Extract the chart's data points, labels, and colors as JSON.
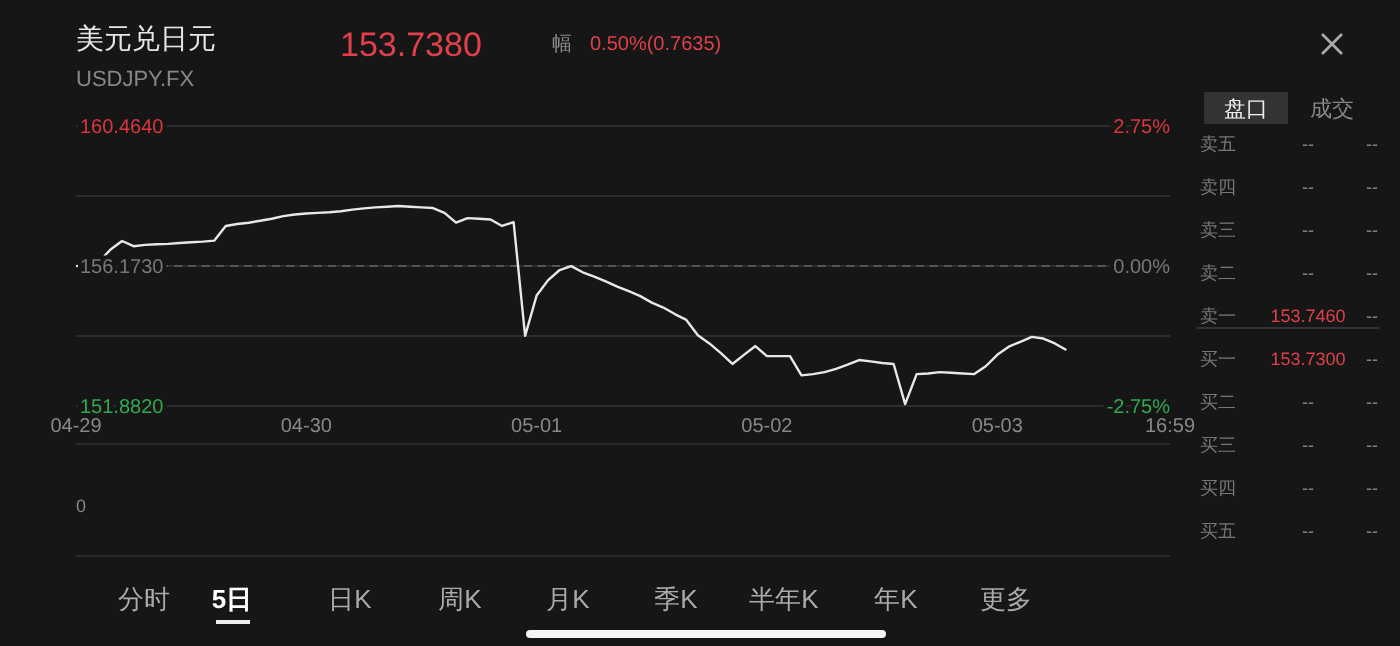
{
  "chart_data": {
    "type": "line",
    "title": "美元兑日元",
    "subtitle": "USDJPY.FX",
    "categories": [
      "04-29",
      null,
      null,
      null,
      null,
      null,
      null,
      null,
      null,
      null,
      null,
      null,
      null,
      null,
      null,
      null,
      null,
      null,
      null,
      null,
      "04-30",
      null,
      null,
      null,
      null,
      null,
      null,
      null,
      null,
      null,
      null,
      null,
      null,
      null,
      null,
      null,
      null,
      null,
      null,
      null,
      "05-01",
      null,
      null,
      null,
      null,
      null,
      null,
      null,
      null,
      null,
      null,
      null,
      null,
      null,
      null,
      null,
      null,
      null,
      null,
      null,
      "05-02",
      null,
      null,
      null,
      null,
      null,
      null,
      null,
      null,
      null,
      null,
      null,
      null,
      null,
      null,
      null,
      null,
      null,
      null,
      null,
      "05-03",
      null,
      null,
      null,
      null,
      null,
      null,
      null,
      null,
      null,
      null,
      null,
      null,
      null,
      null,
      "16:59"
    ],
    "series": [
      {
        "color": "#e8e8e8",
        "values": [
          156.17,
          156.2,
          156.3,
          156.68,
          156.94,
          156.78,
          156.82,
          156.84,
          156.85,
          156.88,
          156.9,
          156.92,
          156.95,
          157.4,
          157.46,
          157.5,
          157.56,
          157.62,
          157.7,
          157.75,
          157.78,
          157.8,
          157.82,
          157.85,
          157.9,
          157.94,
          157.97,
          157.99,
          158.01,
          157.99,
          157.97,
          157.95,
          157.8,
          157.5,
          157.64,
          157.62,
          157.6,
          157.4,
          157.52,
          154.03,
          155.27,
          155.74,
          156.05,
          156.17,
          155.98,
          155.85,
          155.7,
          155.54,
          155.4,
          155.25,
          155.05,
          154.9,
          154.7,
          154.52,
          154.05,
          153.8,
          153.5,
          153.17,
          153.45,
          153.72,
          153.41,
          153.41,
          153.41,
          152.82,
          152.86,
          152.92,
          153.02,
          153.15,
          153.29,
          153.25,
          153.2,
          153.17,
          151.94,
          152.86,
          152.88,
          152.92,
          152.9,
          152.88,
          152.86,
          153.1,
          153.45,
          153.7,
          153.85,
          154.0,
          153.95,
          153.8,
          153.6,
          null,
          null,
          null,
          null,
          null,
          null,
          null,
          null,
          null
        ]
      }
    ],
    "ylim": [
      151.882,
      160.464
    ],
    "yticks": [
      {
        "value": 160.464,
        "label": "160.4640"
      },
      {
        "value": 158.3185,
        "label": null
      },
      {
        "value": 156.173,
        "label": "156.1730"
      },
      {
        "value": 154.0275,
        "label": null
      },
      {
        "value": 151.882,
        "label": "151.8820"
      }
    ],
    "y2lim": [
      -2.75,
      2.75
    ],
    "y2ticks": [
      {
        "value": 2.75,
        "label": "2.75%"
      },
      {
        "value": 0,
        "label": "0.00%"
      },
      {
        "value": -2.75,
        "label": "-2.75%"
      }
    ],
    "ref_lines": [
      {
        "axis": "y",
        "value": 156.173,
        "line_style": "dashed",
        "color": "#555555"
      }
    ],
    "grid": "y",
    "marker": "none",
    "line_style": "solid",
    "annotations": [
      "153.7380",
      "幅",
      "0.50%(0.7635)",
      "盘口",
      "成交",
      "卖五",
      "--",
      "--",
      "卖四",
      "--",
      "--",
      "卖三",
      "--",
      "--",
      "卖二",
      "--",
      "--",
      "卖一",
      "153.7460",
      "--",
      "买一",
      "153.7300",
      "--",
      "买二",
      "--",
      "--",
      "买三",
      "--",
      "--",
      "买四",
      "--",
      "--",
      "买五",
      "--",
      "--",
      "0",
      "分时",
      "5日",
      "日K",
      "周K",
      "月K",
      "季K",
      "半年K",
      "年K",
      "更多"
    ]
  }
}
